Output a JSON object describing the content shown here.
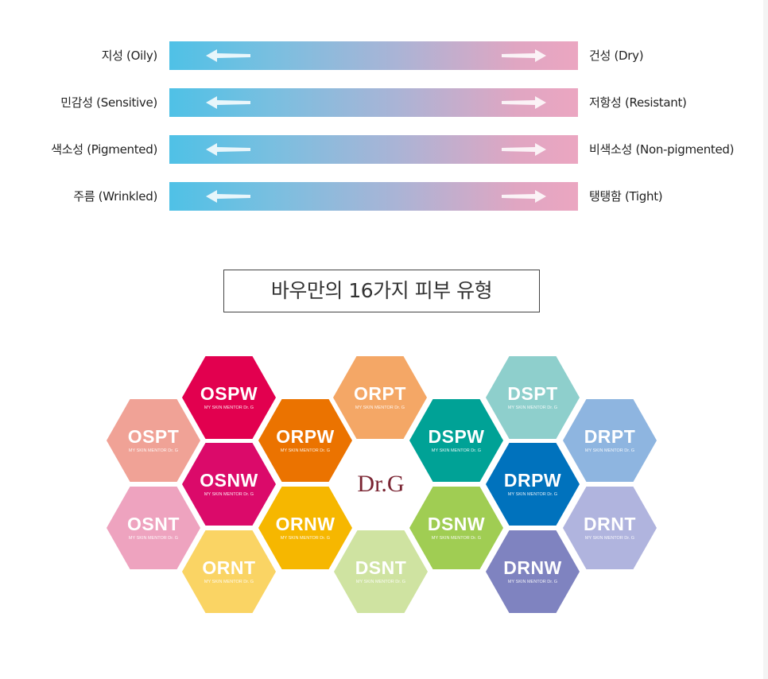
{
  "scales": [
    {
      "left": "지성 (Oily)",
      "right": "건성 (Dry)"
    },
    {
      "left": "민감성 (Sensitive)",
      "right": "저항성 (Resistant)"
    },
    {
      "left": "색소성 (Pigmented)",
      "right": "비색소성 (Non-pigmented)"
    },
    {
      "left": "주름 (Wrinkled)",
      "right": "탱탱함 (Tight)"
    }
  ],
  "title": "바우만의 16가지 피부 유형",
  "tagline": "MY SKIN MENTOR Dr. G",
  "logo": "Dr.G",
  "types": [
    {
      "code": "OSPW",
      "color": "#e2004f"
    },
    {
      "code": "ORPT",
      "color": "#f4a766"
    },
    {
      "code": "DSPT",
      "color": "#8ecfcc"
    },
    {
      "code": "OSPT",
      "color": "#f0a296"
    },
    {
      "code": "ORPW",
      "color": "#eb7300"
    },
    {
      "code": "DSPW",
      "color": "#00a296"
    },
    {
      "code": "DRPT",
      "color": "#8eb5e0"
    },
    {
      "code": "OSNW",
      "color": "#db0a6a"
    },
    {
      "code": "DRPW",
      "color": "#0072bd"
    },
    {
      "code": "OSNT",
      "color": "#eea3bf"
    },
    {
      "code": "ORNW",
      "color": "#f6b700"
    },
    {
      "code": "DSNW",
      "color": "#a0cd53"
    },
    {
      "code": "DRNT",
      "color": "#b0b4de"
    },
    {
      "code": "ORNT",
      "color": "#fad464"
    },
    {
      "code": "DSNT",
      "color": "#cfe3a1"
    },
    {
      "code": "DRNW",
      "color": "#7f83c0"
    }
  ]
}
